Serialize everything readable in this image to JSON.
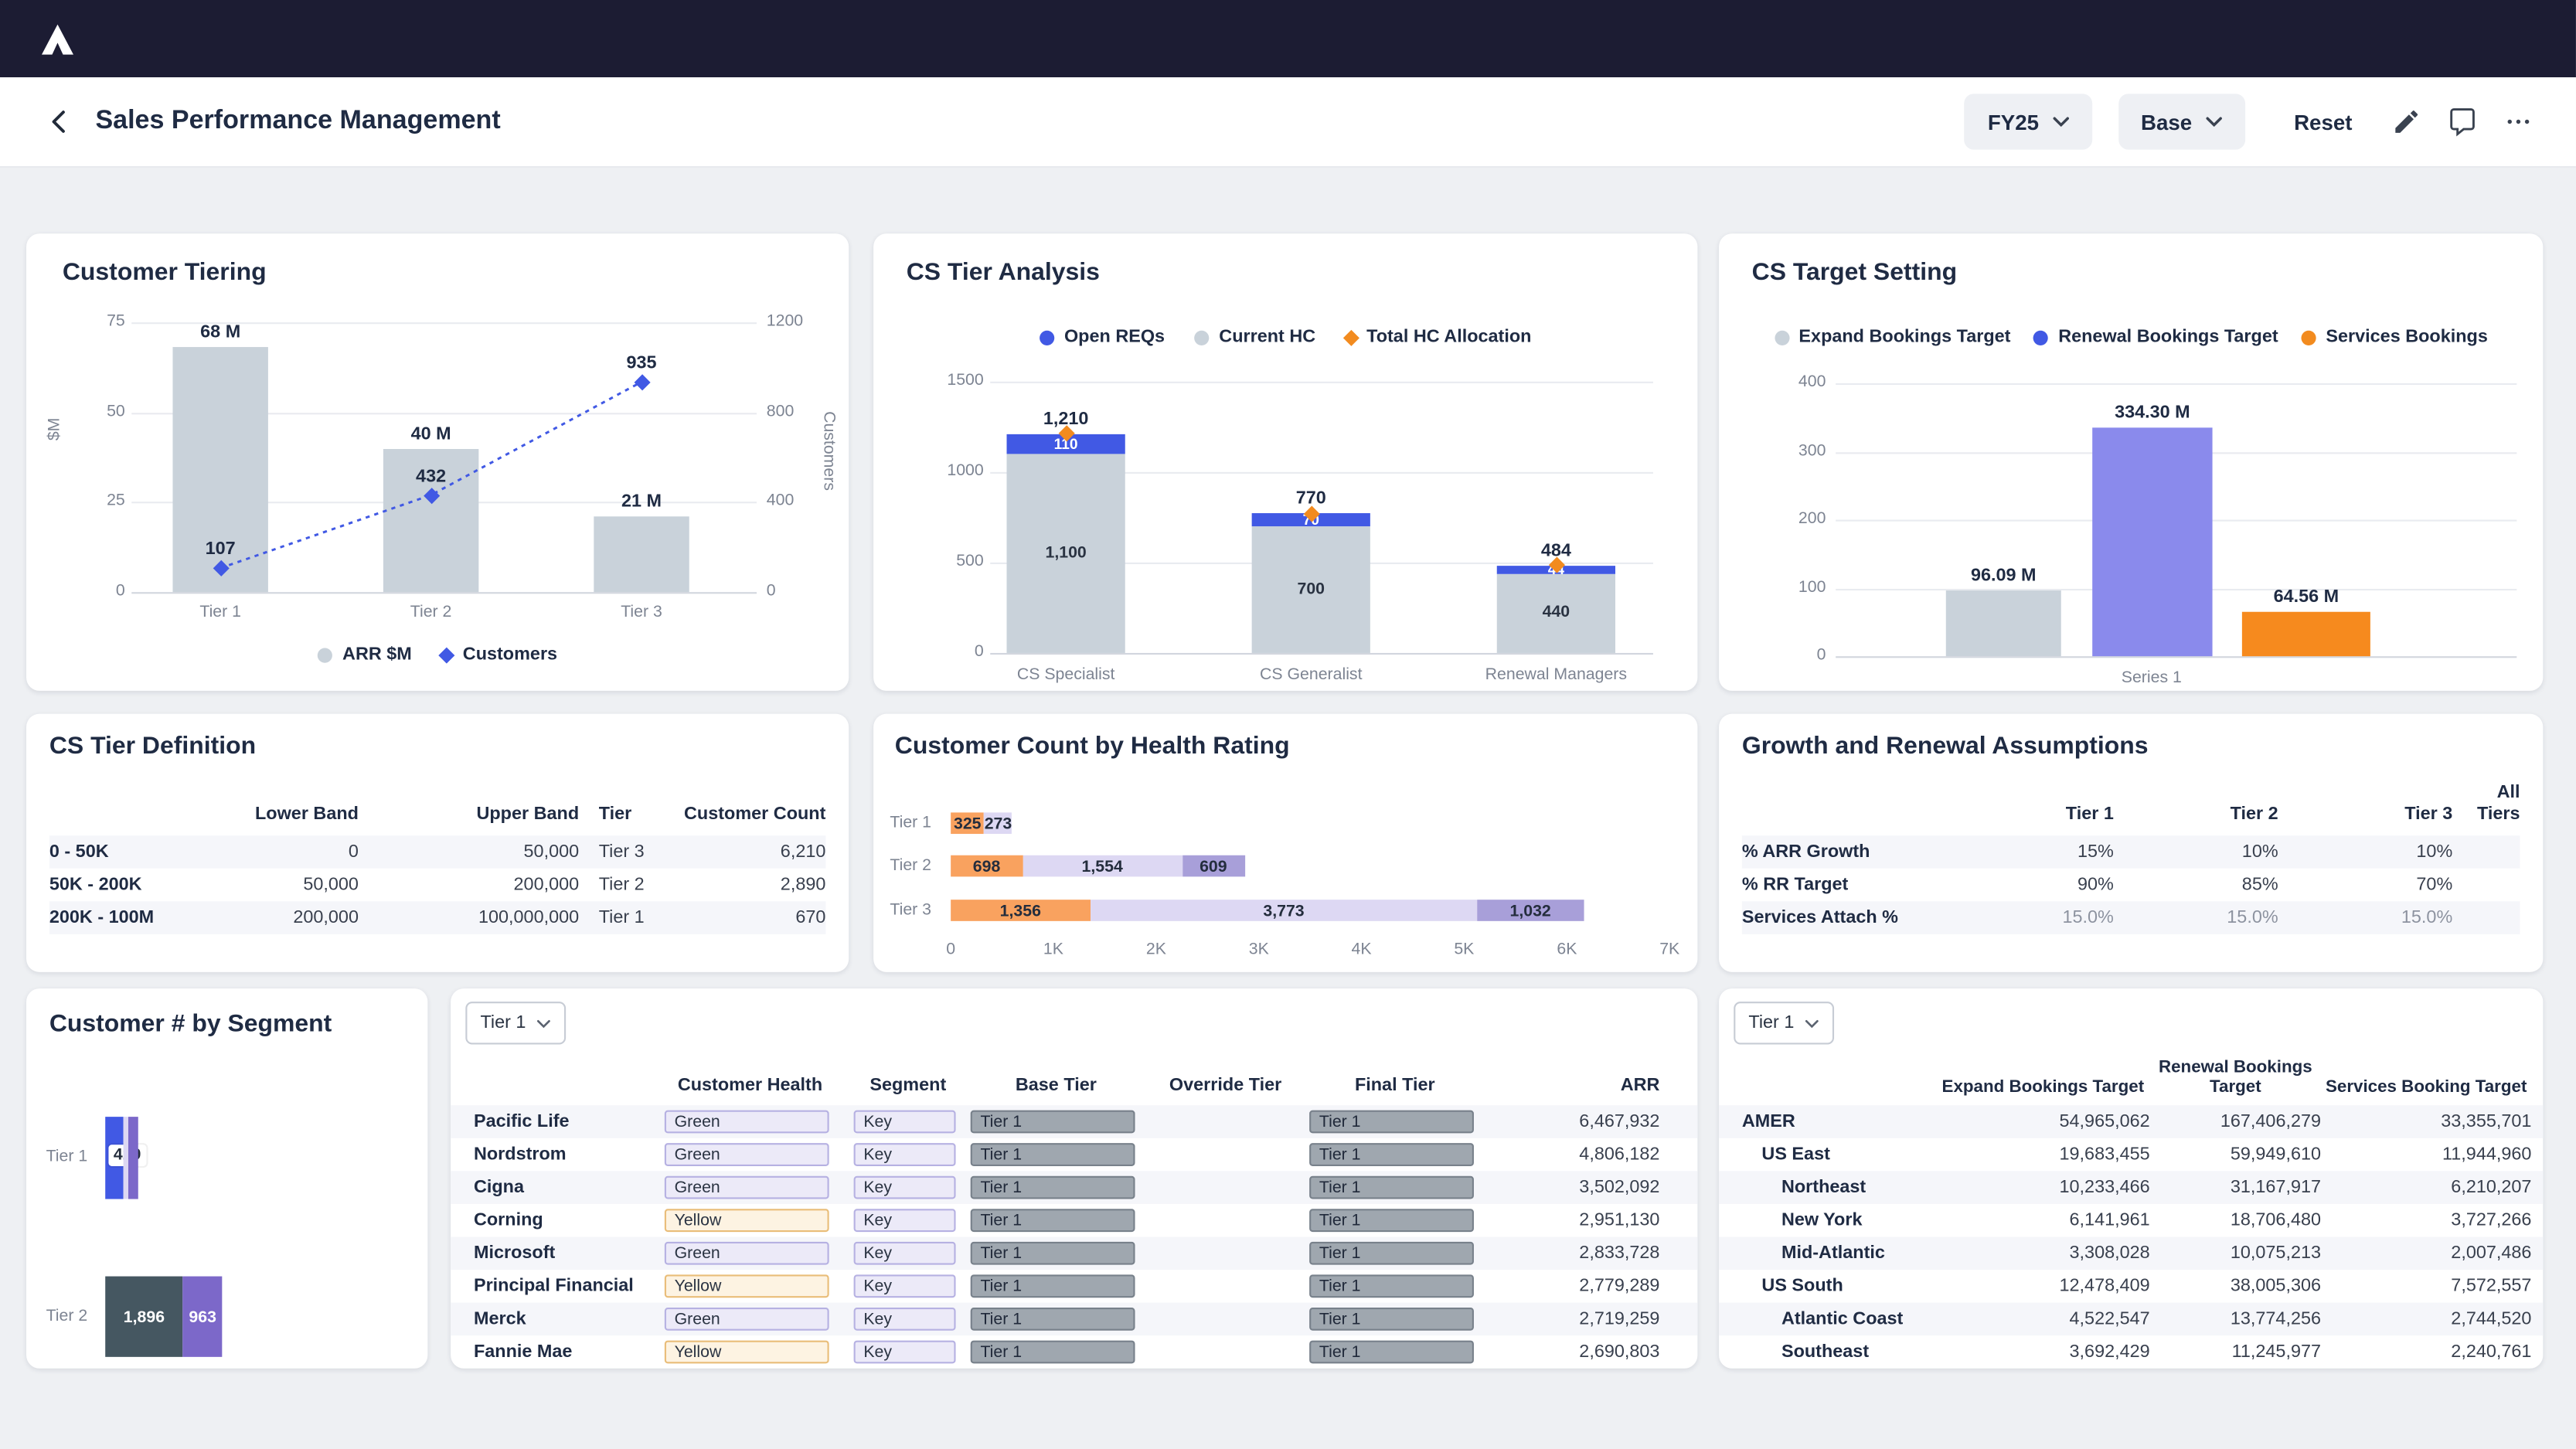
{
  "topbar": {
    "logo": "anaplan"
  },
  "header": {
    "title": "Sales Performance Management",
    "period_selector": "FY25",
    "version_selector": "Base",
    "reset_label": "Reset"
  },
  "row1": {
    "customer_tiering": {
      "title": "Customer Tiering",
      "chart_data": {
        "type": "combo-bar-line",
        "categories": [
          "Tier 1",
          "Tier 2",
          "Tier 3"
        ],
        "bar_series": {
          "name": "ARR $M",
          "values": [
            68,
            40,
            21
          ],
          "labels": [
            "68 M",
            "40 M",
            "21 M"
          ],
          "color": "#c9d2da"
        },
        "line_series": {
          "name": "Customers",
          "values": [
            107,
            432,
            935
          ],
          "labels": [
            "107",
            "432",
            "935"
          ],
          "color": "#4159e4"
        },
        "left_axis": {
          "label": "$M",
          "ticks": [
            "75",
            "50",
            "25",
            "0"
          ],
          "max": 75
        },
        "right_axis": {
          "label": "Customers",
          "ticks": [
            "1200",
            "800",
            "400",
            "0"
          ],
          "max": 1200
        }
      }
    },
    "cs_tier_analysis": {
      "title": "CS Tier Analysis",
      "chart_data": {
        "type": "stacked-bar",
        "categories": [
          "CS Specialist",
          "CS Generalist",
          "Renewal Managers"
        ],
        "series": [
          {
            "name": "Current HC",
            "values": [
              1100,
              700,
              440
            ],
            "labels": [
              "1,100",
              "700",
              "440"
            ],
            "color": "#c9d2da"
          },
          {
            "name": "Open REQs",
            "values": [
              110,
              70,
              44
            ],
            "labels": [
              "110",
              "70",
              "44"
            ],
            "color": "#4159e4"
          }
        ],
        "totals": {
          "values": [
            1210,
            770,
            484
          ],
          "labels": [
            "1,210",
            "770",
            "484"
          ]
        },
        "marker_series": {
          "name": "Total HC Allocation",
          "color": "#f28b1f"
        },
        "y_axis": {
          "ticks": [
            "1500",
            "1000",
            "500",
            "0"
          ],
          "max": 1500
        },
        "legend": [
          {
            "label": "Open REQs",
            "shape": "circle",
            "color": "#4159e4"
          },
          {
            "label": "Current HC",
            "shape": "circle",
            "color": "#c9d2da"
          },
          {
            "label": "Total HC Allocation",
            "shape": "diamond",
            "color": "#f28b1f"
          }
        ]
      }
    },
    "cs_target_setting": {
      "title": "CS Target Setting",
      "chart_data": {
        "type": "bar",
        "x_label": "Series 1",
        "bars": [
          {
            "name": "Expand Bookings Target",
            "value": 96.09,
            "label": "96.09 M",
            "color": "#c9d2da"
          },
          {
            "name": "Renewal Bookings Target",
            "value": 334.3,
            "label": "334.30 M",
            "color": "#8a8aec"
          },
          {
            "name": "Services Bookings",
            "value": 64.56,
            "label": "64.56 M",
            "color": "#f68a1e"
          }
        ],
        "y_axis": {
          "ticks": [
            "400",
            "300",
            "200",
            "100",
            "0"
          ],
          "max": 400
        },
        "legend": [
          {
            "label": "Expand Bookings Target",
            "shape": "circle",
            "color": "#c9d2da"
          },
          {
            "label": "Renewal Bookings Target",
            "shape": "circle",
            "color": "#4159e4"
          },
          {
            "label": "Services Bookings",
            "shape": "circle",
            "color": "#f28b1f"
          }
        ]
      }
    }
  },
  "row2": {
    "cs_tier_definition": {
      "title": "CS Tier Definition",
      "columns": [
        "",
        "Lower Band",
        "Upper Band",
        "Tier",
        "Customer Count"
      ],
      "rows": [
        {
          "label": "0 - 50K",
          "lower": "0",
          "upper": "50,000",
          "tier": "Tier 3",
          "count": "6,210"
        },
        {
          "label": "50K - 200K",
          "lower": "50,000",
          "upper": "200,000",
          "tier": "Tier 2",
          "count": "2,890"
        },
        {
          "label": "200K - 100M",
          "lower": "200,000",
          "upper": "100,000,000",
          "tier": "Tier 1",
          "count": "670"
        }
      ]
    },
    "health_rating": {
      "title": "Customer Count by Health Rating",
      "chart_data": {
        "type": "horizontal-stacked-bar",
        "x_ticks": [
          "0",
          "1K",
          "2K",
          "3K",
          "4K",
          "5K",
          "6K",
          "7K"
        ],
        "x_max": 7000,
        "rows": [
          {
            "label": "Tier 1",
            "segments": [
              {
                "value": 325,
                "label": "325",
                "color": "#f9a25f"
              },
              {
                "value": 273,
                "label": "273",
                "color": "#ddd8f3"
              }
            ]
          },
          {
            "label": "Tier 2",
            "segments": [
              {
                "value": 698,
                "label": "698",
                "color": "#f9a25f"
              },
              {
                "value": 1554,
                "label": "1,554",
                "color": "#ddd8f3"
              },
              {
                "value": 609,
                "label": "609",
                "color": "#a89fd9"
              }
            ]
          },
          {
            "label": "Tier 3",
            "segments": [
              {
                "value": 1356,
                "label": "1,356",
                "color": "#f9a25f"
              },
              {
                "value": 3773,
                "label": "3,773",
                "color": "#ddd8f3"
              },
              {
                "value": 1032,
                "label": "1,032",
                "color": "#a89fd9"
              }
            ]
          }
        ]
      }
    },
    "growth_assumptions": {
      "title": "Growth and Renewal Assumptions",
      "columns": [
        "",
        "Tier 1",
        "Tier 2",
        "Tier 3",
        "All Tiers"
      ],
      "rows": [
        {
          "label": "% ARR Growth",
          "tier1": "15%",
          "tier2": "10%",
          "tier3": "10%",
          "all": ""
        },
        {
          "label": "% RR Target",
          "tier1": "90%",
          "tier2": "85%",
          "tier3": "70%",
          "all": ""
        },
        {
          "label": "Services Attach %",
          "tier1": "15.0%",
          "tier2": "15.0%",
          "tier3": "15.0%",
          "all": "",
          "muted": true
        }
      ]
    }
  },
  "row3": {
    "customer_segment": {
      "title": "Customer # by Segment",
      "chart_data": {
        "type": "horizontal-stacked-bar",
        "rows": [
          {
            "label": "Tier 1",
            "segments": [
              {
                "value": 429,
                "label": "429",
                "color": "#4159e4"
              },
              {
                "label": "",
                "color": "#ddd8f3"
              },
              {
                "label": "",
                "color": "#7c68c9"
              }
            ]
          },
          {
            "label": "Tier 2",
            "segments": [
              {
                "value": 1896,
                "label": "1,896",
                "color": "#455761"
              },
              {
                "value": 963,
                "label": "963",
                "color": "#7c68c9"
              }
            ]
          }
        ]
      }
    },
    "customer_table": {
      "filter_value": "Tier 1",
      "columns": [
        "",
        "Customer Health",
        "Segment",
        "Base Tier",
        "Override Tier",
        "Final Tier",
        "ARR"
      ],
      "rows": [
        {
          "name": "Pacific Life",
          "health": "Green",
          "segment": "Key",
          "base_tier": "Tier 1",
          "override_tier": "",
          "final_tier": "Tier 1",
          "arr": "6,467,932"
        },
        {
          "name": "Nordstrom",
          "health": "Green",
          "segment": "Key",
          "base_tier": "Tier 1",
          "override_tier": "",
          "final_tier": "Tier 1",
          "arr": "4,806,182"
        },
        {
          "name": "Cigna",
          "health": "Green",
          "segment": "Key",
          "base_tier": "Tier 1",
          "override_tier": "",
          "final_tier": "Tier 1",
          "arr": "3,502,092"
        },
        {
          "name": "Corning",
          "health": "Yellow",
          "segment": "Key",
          "base_tier": "Tier 1",
          "override_tier": "",
          "final_tier": "Tier 1",
          "arr": "2,951,130"
        },
        {
          "name": "Microsoft",
          "health": "Green",
          "segment": "Key",
          "base_tier": "Tier 1",
          "override_tier": "",
          "final_tier": "Tier 1",
          "arr": "2,833,728"
        },
        {
          "name": "Principal Financial",
          "health": "Yellow",
          "segment": "Key",
          "base_tier": "Tier 1",
          "override_tier": "",
          "final_tier": "Tier 1",
          "arr": "2,779,289"
        },
        {
          "name": "Merck",
          "health": "Green",
          "segment": "Key",
          "base_tier": "Tier 1",
          "override_tier": "",
          "final_tier": "Tier 1",
          "arr": "2,719,259"
        },
        {
          "name": "Fannie Mae",
          "health": "Yellow",
          "segment": "Key",
          "base_tier": "Tier 1",
          "override_tier": "",
          "final_tier": "Tier 1",
          "arr": "2,690,803"
        }
      ]
    },
    "bookings_table": {
      "filter_value": "Tier 1",
      "columns": [
        "",
        "Expand Bookings Target",
        "Renewal Bookings Target",
        "Services Booking Target"
      ],
      "rows": [
        {
          "name": "AMER",
          "level": 0,
          "expand": "54,965,062",
          "renewal": "167,406,279",
          "services": "33,355,701"
        },
        {
          "name": "US East",
          "level": 1,
          "expand": "19,683,455",
          "renewal": "59,949,610",
          "services": "11,944,960"
        },
        {
          "name": "Northeast",
          "level": 2,
          "expand": "10,233,466",
          "renewal": "31,167,917",
          "services": "6,210,207"
        },
        {
          "name": "New York",
          "level": 2,
          "expand": "6,141,961",
          "renewal": "18,706,480",
          "services": "3,727,266"
        },
        {
          "name": "Mid-Atlantic",
          "level": 2,
          "expand": "3,308,028",
          "renewal": "10,075,213",
          "services": "2,007,486"
        },
        {
          "name": "US South",
          "level": 1,
          "expand": "12,478,409",
          "renewal": "38,005,306",
          "services": "7,572,557"
        },
        {
          "name": "Atlantic Coast",
          "level": 2,
          "expand": "4,522,547",
          "renewal": "13,774,256",
          "services": "2,744,520"
        },
        {
          "name": "Southeast",
          "level": 2,
          "expand": "3,692,429",
          "renewal": "11,245,977",
          "services": "2,240,761"
        }
      ]
    }
  },
  "colors": {
    "topbar_bg": "#1c1c33",
    "page_bg": "#eef0f3",
    "accent_blue": "#4159e4",
    "bar_gray": "#c9d2da",
    "orange": "#f28b1f",
    "periwinkle": "#8a8aec",
    "health_orange": "#f9a25f",
    "health_lavender": "#ddd8f3",
    "health_purple": "#a89fd9",
    "segment_dark": "#455761",
    "segment_purple": "#7c68c9"
  }
}
